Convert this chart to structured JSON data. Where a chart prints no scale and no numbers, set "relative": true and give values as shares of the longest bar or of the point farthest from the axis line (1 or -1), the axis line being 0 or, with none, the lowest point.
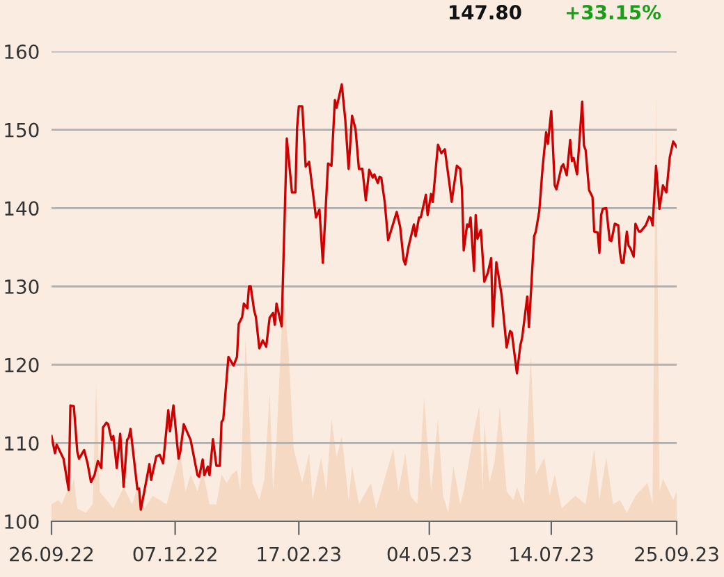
{
  "chart_data": [
    {
      "type": "line",
      "annotations": [
        "147.80",
        "+33.15%"
      ],
      "x": [
        "2022-09-26",
        "2022-09-28",
        "2022-09-29",
        "2022-10-01",
        "2022-10-03",
        "2022-10-06",
        "2022-10-07",
        "2022-10-09",
        "2022-10-11",
        "2022-10-12",
        "2022-10-15",
        "2022-10-17",
        "2022-10-19",
        "2022-10-21",
        "2022-10-23",
        "2022-10-25",
        "2022-10-26",
        "2022-10-28",
        "2022-10-29",
        "2022-10-31",
        "2022-11-01",
        "2022-11-03",
        "2022-11-05",
        "2022-11-07",
        "2022-11-09",
        "2022-11-10",
        "2022-11-11",
        "2022-11-15",
        "2022-11-16",
        "2022-11-17",
        "2022-11-19",
        "2022-11-22",
        "2022-11-23",
        "2022-11-26",
        "2022-11-28",
        "2022-11-30",
        "2022-12-03",
        "2022-12-04",
        "2022-12-06",
        "2022-12-09",
        "2022-12-10",
        "2022-12-12",
        "2022-12-16",
        "2022-12-20",
        "2022-12-21",
        "2022-12-23",
        "2022-12-24",
        "2022-12-26",
        "2022-12-27",
        "2022-12-29",
        "2022-12-31",
        "2023-01-02",
        "2023-01-03",
        "2023-01-04",
        "2023-01-07",
        "2023-01-10",
        "2023-01-12",
        "2023-01-13",
        "2023-01-15",
        "2023-01-16",
        "2023-01-18",
        "2023-01-19",
        "2023-01-20",
        "2023-01-22",
        "2023-01-23",
        "2023-01-25",
        "2023-01-27",
        "2023-01-29",
        "2023-01-31",
        "2023-02-02",
        "2023-02-03",
        "2023-02-04",
        "2023-02-07",
        "2023-02-10",
        "2023-02-13",
        "2023-02-15",
        "2023-02-16",
        "2023-02-17",
        "2023-02-19",
        "2023-02-21",
        "2023-02-23",
        "2023-02-27",
        "2023-03-01",
        "2023-03-03",
        "2023-03-06",
        "2023-03-08",
        "2023-03-10",
        "2023-03-11",
        "2023-03-14",
        "2023-03-16",
        "2023-03-18",
        "2023-03-20",
        "2023-03-22",
        "2023-03-24",
        "2023-03-26",
        "2023-03-28",
        "2023-03-30",
        "2023-04-01",
        "2023-04-02",
        "2023-04-04",
        "2023-04-05",
        "2023-04-06",
        "2023-04-08",
        "2023-04-10",
        "2023-04-15",
        "2023-04-17",
        "2023-04-19",
        "2023-04-20",
        "2023-04-22",
        "2023-04-25",
        "2023-04-26",
        "2023-04-28",
        "2023-04-29",
        "2023-05-02",
        "2023-05-03",
        "2023-05-05",
        "2023-05-06",
        "2023-05-09",
        "2023-05-11",
        "2023-05-13",
        "2023-05-16",
        "2023-05-17",
        "2023-05-20",
        "2023-05-22",
        "2023-05-23",
        "2023-05-24",
        "2023-05-26",
        "2023-05-27",
        "2023-05-28",
        "2023-05-30",
        "2023-05-31",
        "2023-06-01",
        "2023-06-03",
        "2023-06-05",
        "2023-06-07",
        "2023-06-09",
        "2023-06-10",
        "2023-06-12",
        "2023-06-15",
        "2023-06-18",
        "2023-06-20",
        "2023-06-21",
        "2023-06-24",
        "2023-06-26",
        "2023-06-27",
        "2023-06-30",
        "2023-07-01",
        "2023-07-04",
        "2023-07-05",
        "2023-07-07",
        "2023-07-09",
        "2023-07-11",
        "2023-07-12",
        "2023-07-14",
        "2023-07-16",
        "2023-07-17",
        "2023-07-20",
        "2023-07-21",
        "2023-07-23",
        "2023-07-25",
        "2023-07-26",
        "2023-07-27",
        "2023-07-29",
        "2023-08-01",
        "2023-08-02",
        "2023-08-03",
        "2023-08-05",
        "2023-08-07",
        "2023-08-08",
        "2023-08-10",
        "2023-08-11",
        "2023-08-12",
        "2023-08-13",
        "2023-08-15",
        "2023-08-17",
        "2023-08-18",
        "2023-08-20",
        "2023-08-22",
        "2023-08-23",
        "2023-08-24",
        "2023-08-25",
        "2023-08-27",
        "2023-08-28",
        "2023-08-29",
        "2023-08-31",
        "2023-09-01",
        "2023-09-03",
        "2023-09-04",
        "2023-09-07",
        "2023-09-09",
        "2023-09-10",
        "2023-09-11",
        "2023-09-13",
        "2023-09-15",
        "2023-09-17",
        "2023-09-19",
        "2023-09-21",
        "2023-09-23",
        "2023-09-25"
      ],
      "series": [
        {
          "color": "#cc0000",
          "values": [
            110.9,
            108.7,
            109.8,
            108.9,
            108,
            104,
            114.8,
            114.7,
            108.9,
            108,
            109.1,
            107.4,
            105,
            105.9,
            107.7,
            106.8,
            112,
            112.6,
            112.4,
            110.4,
            110.9,
            106.8,
            111.2,
            104.4,
            110.4,
            110.7,
            111.8,
            104.1,
            104.2,
            101.5,
            103.8,
            107.3,
            105.3,
            108.3,
            108.5,
            107.4,
            114.2,
            111.5,
            114.8,
            108,
            108.9,
            112.4,
            110.4,
            105.9,
            105.7,
            107.9,
            105.9,
            107,
            105.9,
            110.5,
            107.1,
            107.1,
            112.7,
            113,
            121,
            119.9,
            121,
            125.2,
            126.1,
            127.8,
            127.2,
            130,
            130,
            126.9,
            126.1,
            122.1,
            123.1,
            122.3,
            126,
            126.6,
            125.1,
            127.8,
            124.9,
            148.9,
            142,
            142,
            150.3,
            153,
            153,
            145.3,
            145.9,
            138.8,
            139.8,
            133,
            145.7,
            145.4,
            153.8,
            152.8,
            155.8,
            151.4,
            145,
            151.8,
            150.1,
            145,
            145,
            141,
            144.9,
            143.9,
            144.3,
            143.2,
            144,
            143.9,
            140.8,
            135.9,
            139.5,
            137.6,
            133.4,
            132.8,
            135.2,
            137.9,
            136.4,
            138.8,
            138.8,
            141.7,
            139.1,
            141.8,
            140.8,
            148.1,
            147,
            147.5,
            142.6,
            140.8,
            145.4,
            145,
            142.3,
            134.6,
            137.9,
            137.6,
            138.8,
            132,
            139.1,
            136.1,
            137.2,
            130.6,
            131.7,
            133.6,
            124.9,
            133.1,
            129,
            122.2,
            124.3,
            124.1,
            118.9,
            122.5,
            123.4,
            128.7,
            124.8,
            136.4,
            137,
            139.6,
            145.3,
            149.7,
            148.2,
            152.4,
            142.9,
            142.4,
            145.3,
            145.6,
            144.2,
            148.7,
            146,
            146.4,
            144.3,
            153.6,
            148,
            147.4,
            142.3,
            141.4,
            137,
            136.9,
            134.3,
            139.1,
            139.9,
            140,
            135.9,
            135.8,
            138,
            137.8,
            134.3,
            133,
            133,
            137,
            135.2,
            134.9,
            133.8,
            138,
            137,
            137,
            137.8,
            138.9,
            138.7,
            137.8,
            145.4,
            139.9,
            142.9,
            142,
            146.5,
            148.5,
            147.8
          ]
        }
      ],
      "xlim": [
        "2022-09-26",
        "2023-09-25"
      ],
      "xticks": [
        {
          "value": "2022-09-26",
          "label": "26.09.22"
        },
        {
          "value": "2022-12-07",
          "label": "07.12.22"
        },
        {
          "value": "2023-02-17",
          "label": "17.02.23"
        },
        {
          "value": "2023-05-04",
          "label": "04.05.23"
        },
        {
          "value": "2023-07-14",
          "label": "14.07.23"
        },
        {
          "value": "2023-09-25",
          "label": "25.09.23"
        }
      ],
      "ylim": [
        100,
        160
      ],
      "yticks": [
        100,
        110,
        120,
        130,
        140,
        150,
        160
      ],
      "grid": "y",
      "legend": false
    },
    {
      "type": "area",
      "relative": true,
      "x": [
        "2022-09-26",
        "2022-09-30",
        "2022-10-02",
        "2022-10-05",
        "2022-10-07",
        "2022-10-09",
        "2022-10-11",
        "2022-10-16",
        "2022-10-20",
        "2022-10-22",
        "2022-10-24",
        "2022-10-28",
        "2022-11-01",
        "2022-11-07",
        "2022-11-12",
        "2022-11-15",
        "2022-11-19",
        "2022-11-24",
        "2022-12-02",
        "2022-12-10",
        "2022-12-13",
        "2022-12-16",
        "2022-12-20",
        "2022-12-23",
        "2022-12-27",
        "2022-12-31",
        "2023-01-03",
        "2023-01-06",
        "2023-01-09",
        "2023-01-12",
        "2023-01-14",
        "2023-01-17",
        "2023-01-21",
        "2023-01-25",
        "2023-01-28",
        "2023-01-31",
        "2023-02-02",
        "2023-02-04",
        "2023-02-08",
        "2023-02-11",
        "2023-02-14",
        "2023-02-19",
        "2023-02-23",
        "2023-02-25",
        "2023-03-02",
        "2023-03-05",
        "2023-03-08",
        "2023-03-11",
        "2023-03-14",
        "2023-03-18",
        "2023-03-20",
        "2023-03-24",
        "2023-03-31",
        "2023-04-03",
        "2023-04-13",
        "2023-04-16",
        "2023-04-20",
        "2023-04-23",
        "2023-04-27",
        "2023-05-01",
        "2023-05-05",
        "2023-05-09",
        "2023-05-12",
        "2023-05-15",
        "2023-05-18",
        "2023-05-22",
        "2023-05-24",
        "2023-05-30",
        "2023-06-02",
        "2023-06-04",
        "2023-06-05",
        "2023-06-08",
        "2023-06-11",
        "2023-06-14",
        "2023-06-18",
        "2023-06-22",
        "2023-06-24",
        "2023-06-28",
        "2023-07-02",
        "2023-07-05",
        "2023-07-10",
        "2023-07-13",
        "2023-07-16",
        "2023-07-20",
        "2023-07-28",
        "2023-08-03",
        "2023-08-08",
        "2023-08-11",
        "2023-08-15",
        "2023-08-19",
        "2023-08-23",
        "2023-08-27",
        "2023-09-01",
        "2023-09-08",
        "2023-09-11",
        "2023-09-13",
        "2023-09-15",
        "2023-09-17",
        "2023-09-23",
        "2023-09-25"
      ],
      "series": [
        {
          "color": "#f5d9c3",
          "values": [
            0.04,
            0.05,
            0.04,
            0.07,
            0.07,
            0.1,
            0.03,
            0.02,
            0.04,
            0.32,
            0.07,
            0.05,
            0.03,
            0.08,
            0.04,
            0.08,
            0.03,
            0.06,
            0.04,
            0.16,
            0.07,
            0.11,
            0.07,
            0.12,
            0.04,
            0.04,
            0.11,
            0.09,
            0.11,
            0.12,
            0.07,
            0.43,
            0.09,
            0.05,
            0.1,
            0.3,
            0.07,
            0.19,
            0.54,
            0.4,
            0.17,
            0.09,
            0.16,
            0.05,
            0.15,
            0.07,
            0.24,
            0.15,
            0.2,
            0.05,
            0.13,
            0.04,
            0.09,
            0.03,
            0.17,
            0.07,
            0.16,
            0.06,
            0.04,
            0.29,
            0.07,
            0.24,
            0.06,
            0.02,
            0.13,
            0.04,
            0.07,
            0.21,
            0.27,
            0.07,
            0.23,
            0.09,
            0.14,
            0.27,
            0.07,
            0.05,
            0.08,
            0.04,
            0.39,
            0.11,
            0.15,
            0.06,
            0.11,
            0.03,
            0.06,
            0.04,
            0.17,
            0.05,
            0.15,
            0.04,
            0.05,
            0.02,
            0.06,
            0.09,
            0.04,
            1,
            0.07,
            0.1,
            0.05,
            0.07
          ]
        }
      ],
      "xlim": [
        "2022-09-26",
        "2023-09-25"
      ]
    }
  ]
}
